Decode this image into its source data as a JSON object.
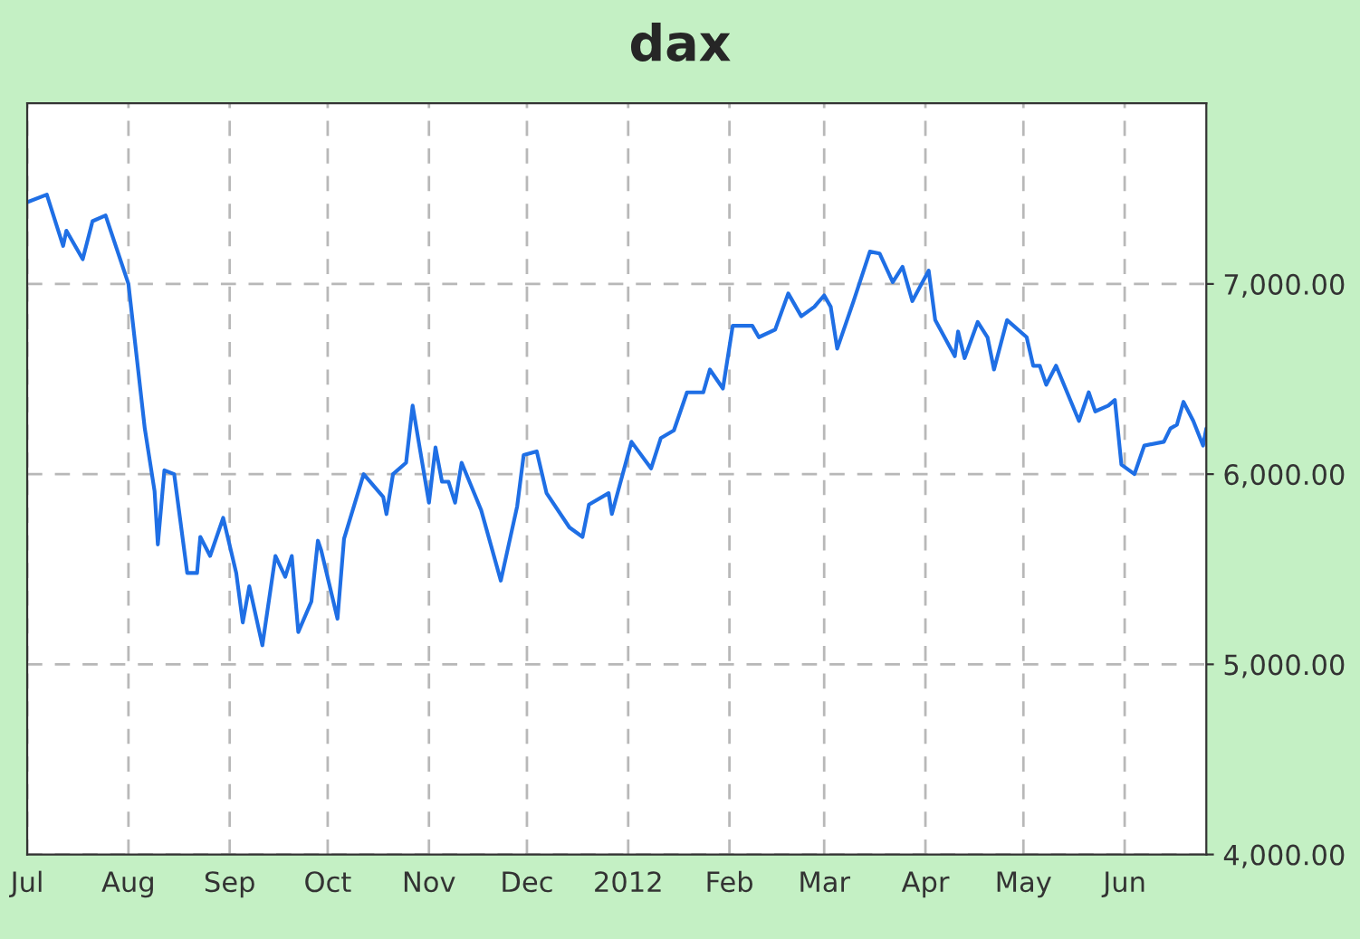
{
  "chart_data": {
    "type": "line",
    "title": "dax",
    "x": [
      "2011-07-01",
      "2011-07-07",
      "2011-07-12",
      "2011-07-13",
      "2011-07-18",
      "2011-07-21",
      "2011-07-25",
      "2011-08-01",
      "2011-08-06",
      "2011-08-09",
      "2011-08-10",
      "2011-08-12",
      "2011-08-15",
      "2011-08-19",
      "2011-08-22",
      "2011-08-23",
      "2011-08-26",
      "2011-08-30",
      "2011-09-03",
      "2011-09-05",
      "2011-09-07",
      "2011-09-11",
      "2011-09-15",
      "2011-09-18",
      "2011-09-20",
      "2011-09-22",
      "2011-09-26",
      "2011-09-28",
      "2011-09-29",
      "2011-10-04",
      "2011-10-06",
      "2011-10-12",
      "2011-10-18",
      "2011-10-19",
      "2011-10-21",
      "2011-10-25",
      "2011-10-27",
      "2011-11-01",
      "2011-11-03",
      "2011-11-05",
      "2011-11-07",
      "2011-11-09",
      "2011-11-11",
      "2011-11-17",
      "2011-11-23",
      "2011-11-28",
      "2011-11-30",
      "2011-12-04",
      "2011-12-07",
      "2011-12-14",
      "2011-12-18",
      "2011-12-20",
      "2011-12-26",
      "2011-12-27",
      "2012-01-02",
      "2012-01-08",
      "2012-01-11",
      "2012-01-15",
      "2012-01-19",
      "2012-01-24",
      "2012-01-26",
      "2012-01-30",
      "2012-02-02",
      "2012-02-08",
      "2012-02-10",
      "2012-02-15",
      "2012-02-19",
      "2012-02-23",
      "2012-02-27",
      "2012-03-01",
      "2012-03-03",
      "2012-03-05",
      "2012-03-10",
      "2012-03-15",
      "2012-03-18",
      "2012-03-22",
      "2012-03-25",
      "2012-03-28",
      "2012-04-02",
      "2012-04-04",
      "2012-04-10",
      "2012-04-11",
      "2012-04-13",
      "2012-04-17",
      "2012-04-20",
      "2012-04-22",
      "2012-04-26",
      "2012-05-02",
      "2012-05-04",
      "2012-05-06",
      "2012-05-08",
      "2012-05-11",
      "2012-05-18",
      "2012-05-21",
      "2012-05-23",
      "2012-05-27",
      "2012-05-29",
      "2012-05-31",
      "2012-06-04",
      "2012-06-07",
      "2012-06-13",
      "2012-06-15",
      "2012-06-17",
      "2012-06-19",
      "2012-06-22",
      "2012-06-25",
      "2012-06-26"
    ],
    "series": [
      {
        "color": "#1f6fe5",
        "values": [
          7430,
          7470,
          7200,
          7280,
          7130,
          7330,
          7360,
          7000,
          6240,
          5910,
          5630,
          6020,
          6000,
          5480,
          5480,
          5670,
          5570,
          5770,
          5480,
          5220,
          5410,
          5100,
          5570,
          5460,
          5570,
          5170,
          5330,
          5650,
          5600,
          5240,
          5660,
          6000,
          5880,
          5790,
          6000,
          6060,
          6360,
          5850,
          6140,
          5960,
          5960,
          5850,
          6060,
          5810,
          5440,
          5830,
          6100,
          6120,
          5900,
          5720,
          5670,
          5840,
          5900,
          5790,
          6170,
          6030,
          6190,
          6230,
          6430,
          6430,
          6550,
          6450,
          6780,
          6780,
          6720,
          6760,
          6950,
          6830,
          6880,
          6940,
          6880,
          6660,
          6910,
          7170,
          7160,
          7010,
          7090,
          6910,
          7070,
          6810,
          6620,
          6750,
          6610,
          6800,
          6720,
          6550,
          6810,
          6720,
          6570,
          6570,
          6470,
          6570,
          6280,
          6430,
          6330,
          6360,
          6390,
          6050,
          6000,
          6150,
          6170,
          6240,
          6260,
          6380,
          6280,
          6150,
          6240
        ]
      }
    ],
    "xlim": [
      "2011-07-01",
      "2012-06-26"
    ],
    "xticks": [
      {
        "value": "2011-07-01",
        "label": "Jul"
      },
      {
        "value": "2011-08-01",
        "label": "Aug"
      },
      {
        "value": "2011-09-01",
        "label": "Sep"
      },
      {
        "value": "2011-10-01",
        "label": "Oct"
      },
      {
        "value": "2011-11-01",
        "label": "Nov"
      },
      {
        "value": "2011-12-01",
        "label": "Dec"
      },
      {
        "value": "2012-01-01",
        "label": "2012"
      },
      {
        "value": "2012-02-01",
        "label": "Feb"
      },
      {
        "value": "2012-03-01",
        "label": "Mar"
      },
      {
        "value": "2012-04-01",
        "label": "Apr"
      },
      {
        "value": "2012-05-01",
        "label": "May"
      },
      {
        "value": "2012-06-01",
        "label": "Jun"
      }
    ],
    "ylim": [
      4000,
      7950
    ],
    "yticks": [
      {
        "value": 4000,
        "label": "4,000.00"
      },
      {
        "value": 5000,
        "label": "5,000.00"
      },
      {
        "value": 6000,
        "label": "6,000.00"
      },
      {
        "value": 7000,
        "label": "7,000.00"
      }
    ],
    "grid": true,
    "line_style": "solid",
    "marker": "none",
    "legend": false
  }
}
